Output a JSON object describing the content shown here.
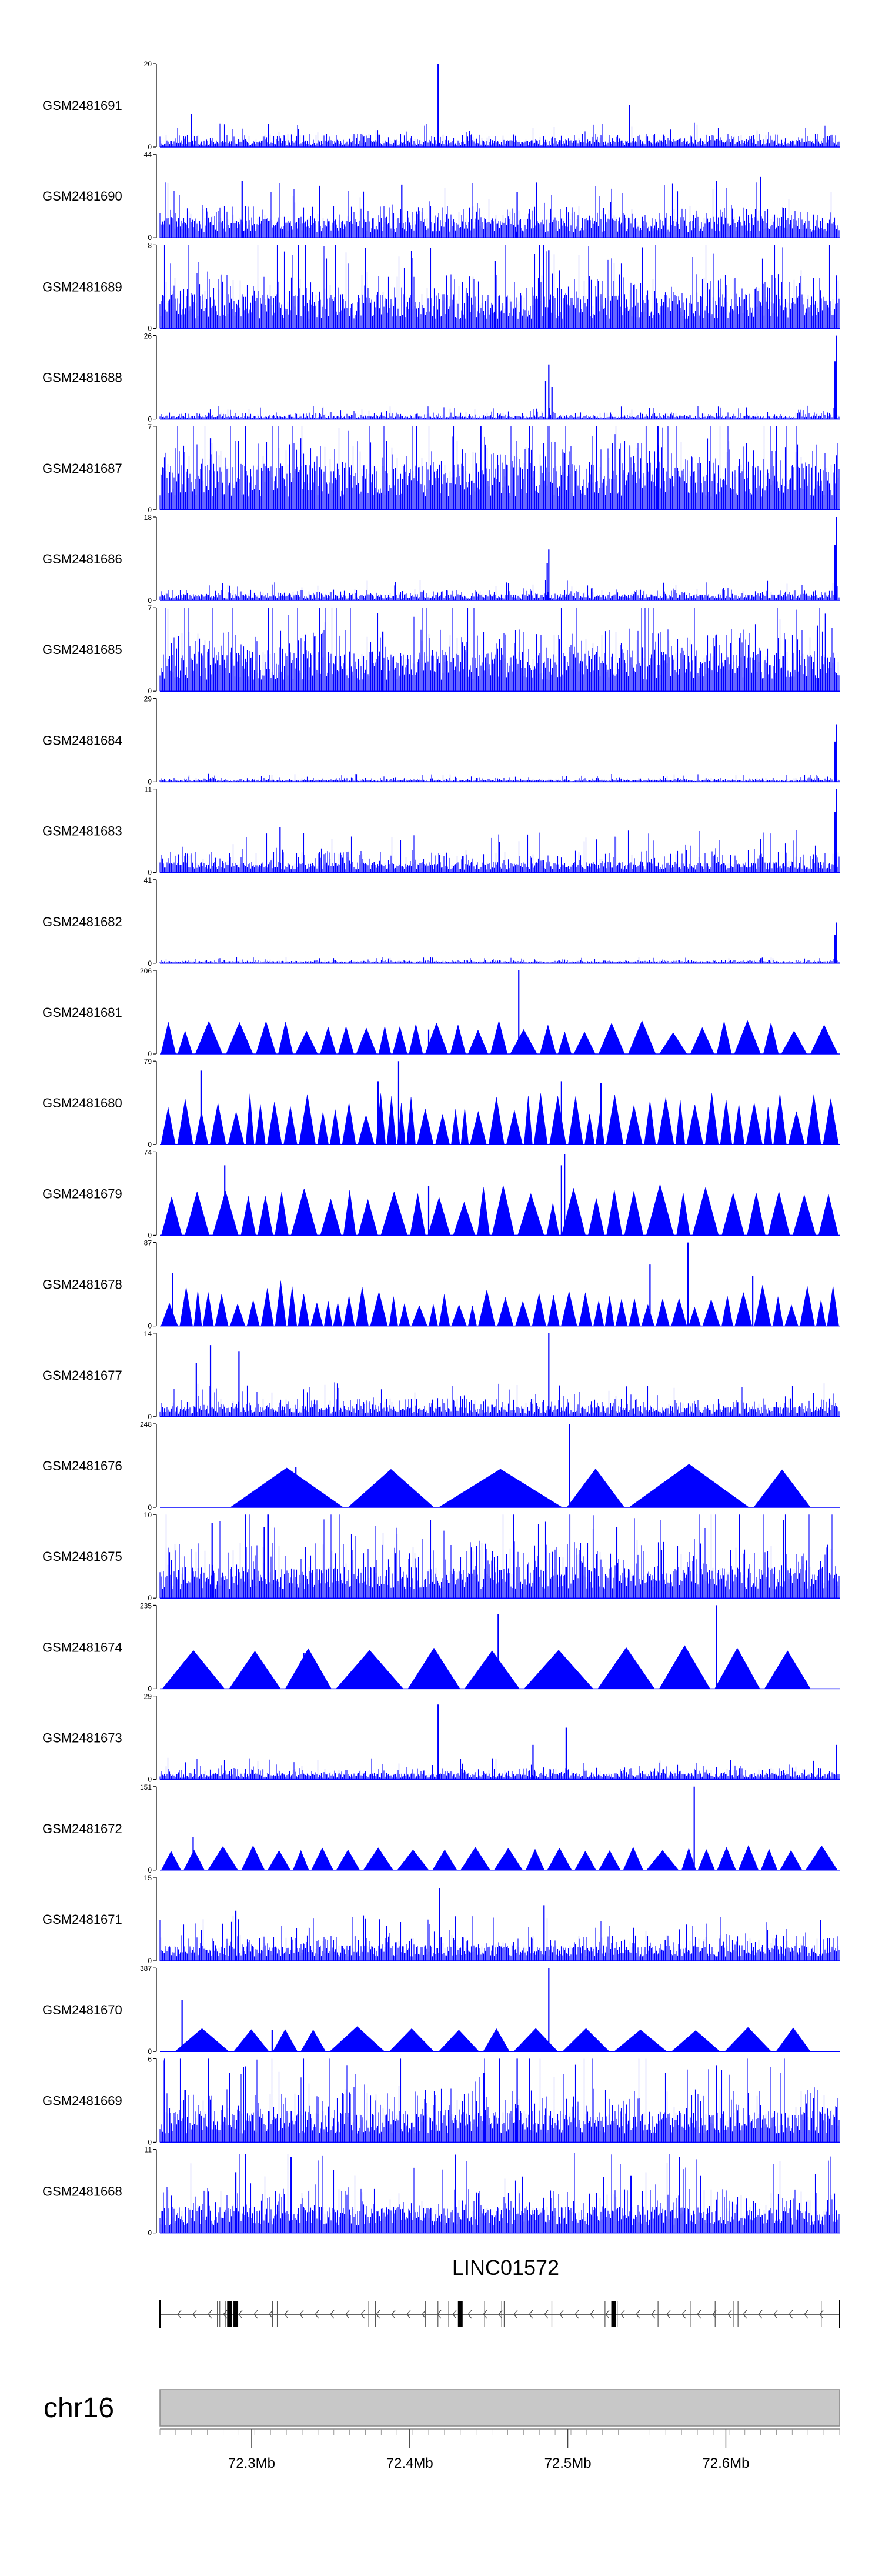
{
  "chart_data": {
    "type": "area",
    "title": "",
    "xlabel": "",
    "ylabel": "",
    "chromosome": "chr16",
    "xlim_mb": [
      72.242,
      72.672
    ],
    "x_ticks": [
      {
        "value": 72.3,
        "label": "72.3Mb"
      },
      {
        "value": 72.4,
        "label": "72.4Mb"
      },
      {
        "value": 72.5,
        "label": "72.5Mb"
      },
      {
        "value": 72.6,
        "label": "72.6Mb"
      }
    ],
    "gene": {
      "name": "LINC01572",
      "start_mb": 72.242,
      "end_mb": 72.672,
      "strand": "-",
      "exons_mb": [
        72.286,
        72.29,
        72.432,
        72.529
      ]
    },
    "tracks": [
      {
        "name": "GSM2481691",
        "ymax": 20,
        "ymin": 0,
        "style": "dense",
        "seed": 11,
        "base": 0.07,
        "noise": 0.09,
        "spikes": [
          [
            72.418,
            20
          ],
          [
            72.539,
            10
          ],
          [
            72.262,
            8
          ]
        ]
      },
      {
        "name": "GSM2481690",
        "ymax": 44,
        "ymin": 0,
        "style": "dense",
        "seed": 12,
        "base": 0.2,
        "noise": 0.18,
        "spikes": [
          [
            72.294,
            30
          ],
          [
            72.395,
            28
          ],
          [
            72.594,
            30
          ],
          [
            72.622,
            32
          ],
          [
            72.468,
            24
          ]
        ]
      },
      {
        "name": "GSM2481689",
        "ymax": 8,
        "ymin": 0,
        "style": "dense",
        "seed": 13,
        "base": 0.33,
        "noise": 0.32,
        "spikes": [
          [
            72.482,
            8
          ],
          [
            72.488,
            7.5
          ],
          [
            72.454,
            6.5
          ]
        ]
      },
      {
        "name": "GSM2481688",
        "ymax": 26,
        "ymin": 0,
        "style": "dense",
        "seed": 14,
        "base": 0.03,
        "noise": 0.05,
        "spikes": [
          [
            72.488,
            17
          ],
          [
            72.486,
            12
          ],
          [
            72.49,
            10
          ],
          [
            72.67,
            26
          ],
          [
            72.669,
            18
          ]
        ]
      },
      {
        "name": "GSM2481687",
        "ymax": 7,
        "ymin": 0,
        "style": "dense",
        "seed": 15,
        "base": 0.45,
        "noise": 0.38,
        "spikes": [
          [
            72.445,
            7
          ],
          [
            72.557,
            7
          ],
          [
            72.274,
            6
          ],
          [
            72.331,
            6
          ]
        ]
      },
      {
        "name": "GSM2481686",
        "ymax": 18,
        "ymin": 0,
        "style": "dense",
        "seed": 16,
        "base": 0.06,
        "noise": 0.07,
        "spikes": [
          [
            72.488,
            11
          ],
          [
            72.487,
            8
          ],
          [
            72.67,
            18
          ],
          [
            72.669,
            12
          ]
        ]
      },
      {
        "name": "GSM2481685",
        "ymax": 7,
        "ymin": 0,
        "style": "dense",
        "seed": 17,
        "base": 0.38,
        "noise": 0.36,
        "spikes": [
          [
            72.663,
            6.5
          ],
          [
            72.658,
            5.5
          ],
          [
            72.383,
            5
          ]
        ]
      },
      {
        "name": "GSM2481684",
        "ymax": 29,
        "ymin": 0,
        "style": "dense",
        "seed": 18,
        "base": 0.02,
        "noise": 0.03,
        "spikes": [
          [
            72.67,
            20
          ],
          [
            72.669,
            14
          ]
        ]
      },
      {
        "name": "GSM2481683",
        "ymax": 11,
        "ymin": 0,
        "style": "dense",
        "seed": 19,
        "base": 0.1,
        "noise": 0.16,
        "spikes": [
          [
            72.67,
            11
          ],
          [
            72.669,
            8
          ],
          [
            72.318,
            6
          ]
        ]
      },
      {
        "name": "GSM2481682",
        "ymax": 41,
        "ymin": 0,
        "style": "dense",
        "seed": 20,
        "base": 0.02,
        "noise": 0.02,
        "spikes": [
          [
            72.67,
            20
          ],
          [
            72.669,
            14
          ]
        ]
      },
      {
        "name": "GSM2481681",
        "ymax": 206,
        "ymin": 0,
        "style": "triangles",
        "seed": 21,
        "segments": 30,
        "hmin": 0.25,
        "hmax": 0.4,
        "spikes": [
          [
            72.469,
            206
          ],
          [
            72.412,
            60
          ]
        ]
      },
      {
        "name": "GSM2481680",
        "ymax": 79,
        "ymin": 0,
        "style": "triangles",
        "seed": 22,
        "segments": 46,
        "hmin": 0.35,
        "hmax": 0.62,
        "spikes": [
          [
            72.393,
            79
          ],
          [
            72.268,
            70
          ],
          [
            72.38,
            60
          ],
          [
            72.496,
            60
          ],
          [
            72.521,
            58
          ]
        ]
      },
      {
        "name": "GSM2481679",
        "ymax": 74,
        "ymin": 0,
        "style": "triangles",
        "seed": 23,
        "segments": 30,
        "hmin": 0.38,
        "hmax": 0.62,
        "spikes": [
          [
            72.283,
            62
          ],
          [
            72.498,
            72
          ],
          [
            72.496,
            62
          ],
          [
            72.412,
            44
          ]
        ]
      },
      {
        "name": "GSM2481678",
        "ymax": 87,
        "ymin": 0,
        "style": "triangles",
        "seed": 24,
        "segments": 48,
        "hmin": 0.22,
        "hmax": 0.55,
        "spikes": [
          [
            72.576,
            87
          ],
          [
            72.25,
            55
          ],
          [
            72.552,
            64
          ],
          [
            72.617,
            52
          ]
        ]
      },
      {
        "name": "GSM2481677",
        "ymax": 14,
        "ymin": 0,
        "style": "dense",
        "seed": 25,
        "base": 0.1,
        "noise": 0.12,
        "spikes": [
          [
            72.488,
            14
          ],
          [
            72.274,
            12
          ],
          [
            72.292,
            11
          ],
          [
            72.265,
            9
          ]
        ]
      },
      {
        "name": "GSM2481676",
        "ymax": 248,
        "ymin": 0,
        "style": "triangles",
        "seed": 26,
        "segments": 6,
        "hmin": 0.45,
        "hmax": 0.52,
        "x0": 72.285,
        "x1": 72.655,
        "spikes": [
          [
            72.501,
            248
          ],
          [
            72.328,
            120
          ]
        ]
      },
      {
        "name": "GSM2481675",
        "ymax": 10,
        "ymin": 0,
        "style": "dense",
        "seed": 27,
        "base": 0.3,
        "noise": 0.38,
        "spikes": [
          [
            72.275,
            9
          ],
          [
            72.308,
            8.5
          ],
          [
            72.531,
            8.5
          ]
        ]
      },
      {
        "name": "GSM2481674",
        "ymax": 235,
        "ymin": 0,
        "style": "triangles",
        "seed": 28,
        "segments": 11,
        "hmin": 0.45,
        "hmax": 0.52,
        "x0": 72.242,
        "x1": 72.655,
        "spikes": [
          [
            72.456,
            210
          ],
          [
            72.594,
            235
          ],
          [
            72.333,
            100
          ]
        ]
      },
      {
        "name": "GSM2481673",
        "ymax": 29,
        "ymin": 0,
        "style": "dense",
        "seed": 29,
        "base": 0.06,
        "noise": 0.08,
        "spikes": [
          [
            72.418,
            26
          ],
          [
            72.499,
            18
          ],
          [
            72.478,
            12
          ],
          [
            72.67,
            12
          ]
        ]
      },
      {
        "name": "GSM2481672",
        "ymax": 151,
        "ymin": 0,
        "style": "triangles",
        "seed": 30,
        "segments": 26,
        "hmin": 0.22,
        "hmax": 0.3,
        "spikes": [
          [
            72.58,
            151
          ],
          [
            72.263,
            60
          ]
        ]
      },
      {
        "name": "GSM2481671",
        "ymax": 15,
        "ymin": 0,
        "style": "dense",
        "seed": 31,
        "base": 0.15,
        "noise": 0.16,
        "spikes": [
          [
            72.419,
            13
          ],
          [
            72.485,
            10
          ],
          [
            72.29,
            9
          ]
        ]
      },
      {
        "name": "GSM2481670",
        "ymax": 387,
        "ymin": 0,
        "style": "triangles",
        "seed": 32,
        "segments": 14,
        "hmin": 0.25,
        "hmax": 0.32,
        "x0": 72.25,
        "x1": 72.655,
        "spikes": [
          [
            72.256,
            240
          ],
          [
            72.488,
            387
          ],
          [
            72.313,
            100
          ]
        ]
      },
      {
        "name": "GSM2481669",
        "ymax": 6,
        "ymin": 0,
        "style": "dense",
        "seed": 33,
        "base": 0.3,
        "noise": 0.34,
        "spikes": [
          [
            72.468,
            6
          ],
          [
            72.594,
            5.5
          ],
          [
            72.447,
            5
          ]
        ]
      },
      {
        "name": "GSM2481668",
        "ymax": 11,
        "ymin": 0,
        "style": "dense",
        "seed": 34,
        "base": 0.25,
        "noise": 0.28,
        "spikes": [
          [
            72.325,
            10
          ],
          [
            72.29,
            8
          ],
          [
            72.54,
            7.5
          ]
        ]
      }
    ]
  }
}
